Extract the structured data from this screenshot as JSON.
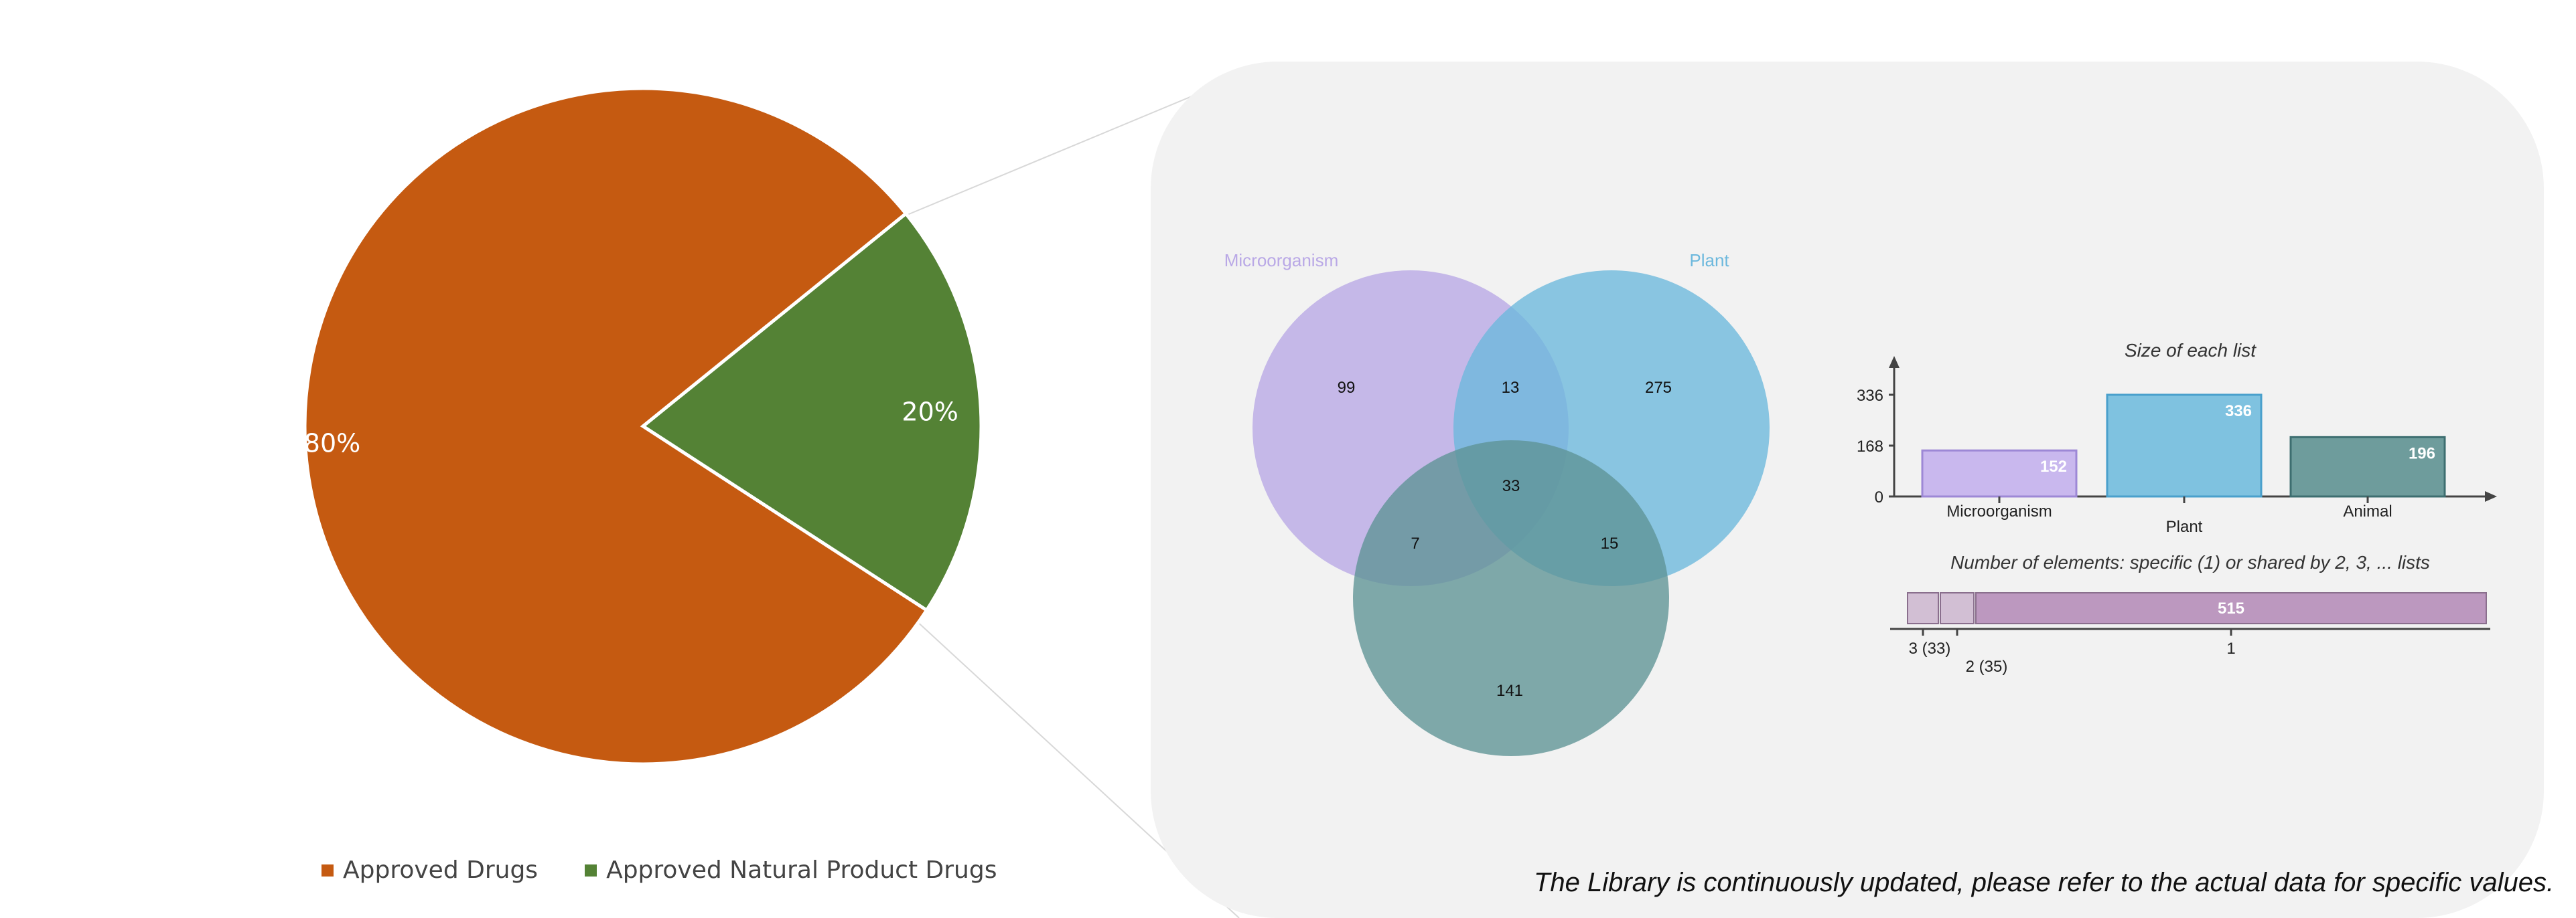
{
  "chart_data": [
    {
      "type": "pie",
      "slices": [
        {
          "label": "Approved Drugs",
          "value": 80,
          "color": "#C55A11",
          "text": "80%"
        },
        {
          "label": "Approved Natural Product Drugs",
          "value": 20,
          "color": "#548235",
          "text": "20%"
        }
      ],
      "legend": "bottom"
    },
    {
      "type": "venn",
      "sets": [
        {
          "name": "Microorganism",
          "color": "#B9A8E6",
          "label_color": "#B9A8E6"
        },
        {
          "name": "Plant",
          "color": "#6CB8DD",
          "label_color": "#6CB8DD"
        },
        {
          "name": "Animal",
          "color": "#5E9495"
        }
      ],
      "regions": {
        "microorganism_only": "99",
        "plant_only": "275",
        "animal_only": "141",
        "microorganism_plant": "13",
        "microorganism_animal": "7",
        "plant_animal": "15",
        "all_three": "33"
      }
    },
    {
      "type": "bar",
      "title": "Size of each list",
      "categories": [
        "Microorganism",
        "Plant",
        "Animal"
      ],
      "values": [
        152,
        336,
        196
      ],
      "colors": [
        "#C9B8EE",
        "#7FC2E0",
        "#6E9C9C"
      ],
      "y_ticks": [
        "0",
        "168",
        "336"
      ],
      "ylim": [
        0,
        336
      ]
    },
    {
      "type": "bar",
      "title": "Number of elements: specific (1) or shared by 2, 3, ... lists",
      "orientation": "horizontal-stacked",
      "segments": [
        {
          "label": "3 (33)",
          "value": 33
        },
        {
          "label": "2 (35)",
          "value": 35
        },
        {
          "label": "1",
          "value": 515,
          "text": "515"
        }
      ],
      "color": "#BC98BF"
    }
  ],
  "footnote": "The Library is continuously updated, please refer to the actual data for specific values."
}
